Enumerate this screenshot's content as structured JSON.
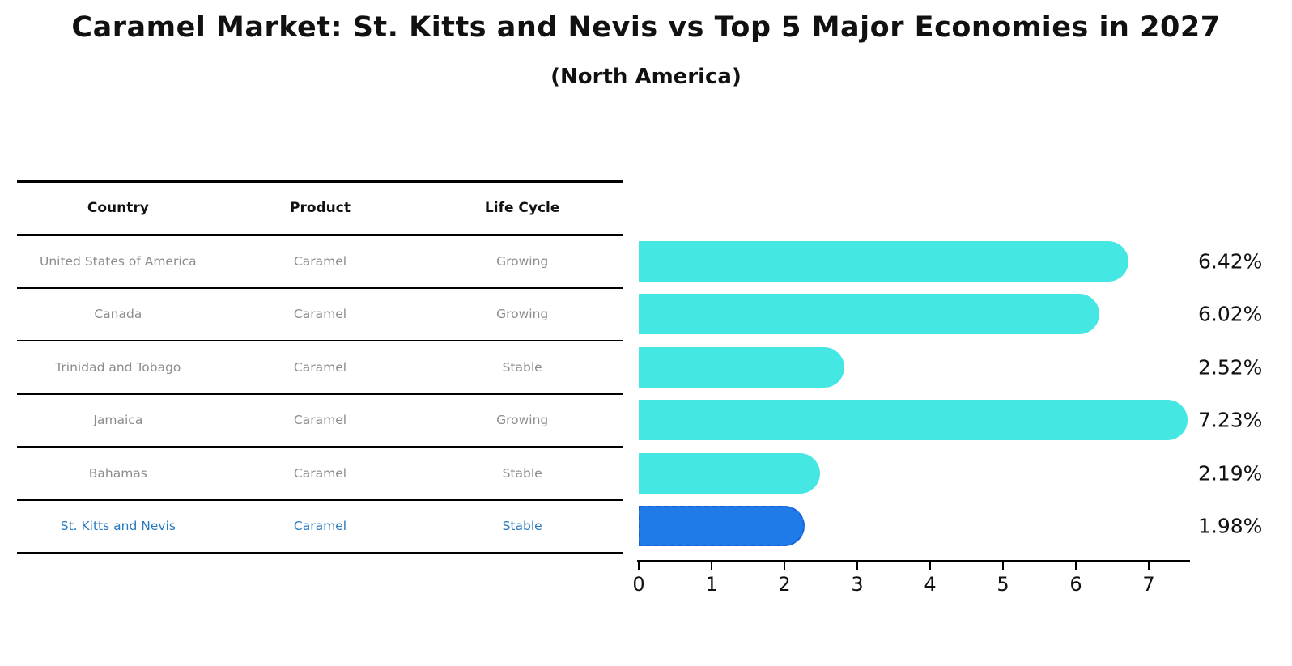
{
  "title": "Caramel Market: St. Kitts and Nevis vs Top 5 Major Economies in 2027",
  "subtitle": "(North America)",
  "table": {
    "columns": [
      "Country",
      "Product",
      "Life Cycle"
    ],
    "rows": [
      {
        "country": "United States of America",
        "product": "Caramel",
        "life_cycle": "Growing",
        "highlight": false
      },
      {
        "country": "Canada",
        "product": "Caramel",
        "life_cycle": "Growing",
        "highlight": false
      },
      {
        "country": "Trinidad and Tobago",
        "product": "Caramel",
        "life_cycle": "Stable",
        "highlight": false
      },
      {
        "country": "Jamaica",
        "product": "Caramel",
        "life_cycle": "Growing",
        "highlight": false
      },
      {
        "country": "Bahamas",
        "product": "Caramel",
        "life_cycle": "Stable",
        "highlight": false
      },
      {
        "country": "St. Kitts and Nevis",
        "product": "Caramel",
        "life_cycle": "Stable",
        "highlight": true
      }
    ]
  },
  "chart_data": {
    "type": "bar",
    "orientation": "horizontal",
    "title": "Caramel Market: St. Kitts and Nevis vs Top 5 Major Economies in 2027 (North America)",
    "categories": [
      "United States of America",
      "Canada",
      "Trinidad and Tobago",
      "Jamaica",
      "Bahamas",
      "St. Kitts and Nevis"
    ],
    "values": [
      6.42,
      6.02,
      2.52,
      7.23,
      2.19,
      1.98
    ],
    "bar_labels": [
      "6.42%",
      "6.02%",
      "2.52%",
      "7.23%",
      "2.19%",
      "1.98%"
    ],
    "x_ticks": [
      0,
      1,
      2,
      3,
      4,
      5,
      6,
      7
    ],
    "xlim": [
      0,
      7.6
    ],
    "xlabel": "",
    "ylabel": "",
    "grid": false,
    "legend": false,
    "highlight_index": 5
  },
  "colors": {
    "bar": "#45e7e3",
    "highlight_bar": "#1f7be8",
    "highlight_border": "#1a5ed6",
    "highlight_text": "#2878be",
    "row_text": "#8c8c8c",
    "header_text": "#111111",
    "line": "#000000",
    "background": "#ffffff"
  }
}
